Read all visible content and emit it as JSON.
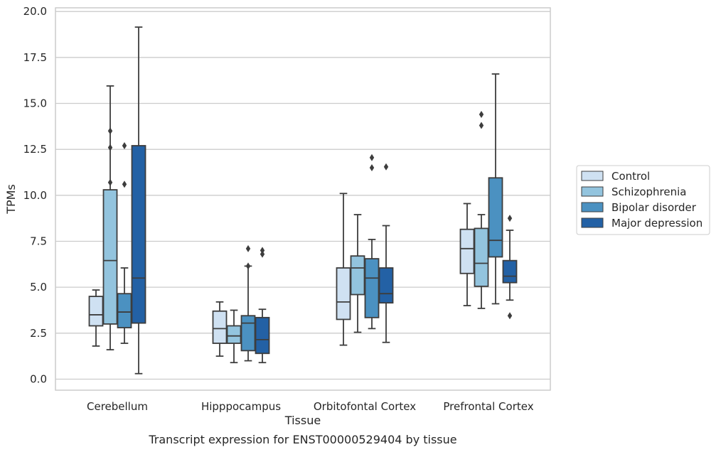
{
  "caption": "Transcript expression for ENST00000529404 by tissue",
  "chart_data": {
    "type": "box",
    "title": "",
    "xlabel": "Tissue",
    "ylabel": "TPMs",
    "ylim": [
      -0.6,
      20.2
    ],
    "yticks": [
      "0.0",
      "2.5",
      "5.0",
      "7.5",
      "10.0",
      "12.5",
      "15.0",
      "17.5",
      "20.0"
    ],
    "ytick_values": [
      0,
      2.5,
      5,
      7.5,
      10,
      12.5,
      15,
      17.5,
      20
    ],
    "grid": "horizontal",
    "legend_position": "right",
    "categories": [
      "Cerebellum",
      "Hipppocampus",
      "Orbitofontal Cortex",
      "Prefrontal Cortex"
    ],
    "series": [
      {
        "name": "Control",
        "color": "#cfe1f2",
        "boxes": [
          {
            "whisker_low": 1.8,
            "q1": 2.9,
            "median": 3.5,
            "q3": 4.5,
            "whisker_high": 4.85,
            "outliers": []
          },
          {
            "whisker_low": 1.25,
            "q1": 1.95,
            "median": 2.75,
            "q3": 3.7,
            "whisker_high": 4.2,
            "outliers": []
          },
          {
            "whisker_low": 1.85,
            "q1": 3.25,
            "median": 4.2,
            "q3": 6.05,
            "whisker_high": 10.1,
            "outliers": []
          },
          {
            "whisker_low": 4.0,
            "q1": 5.75,
            "median": 7.1,
            "q3": 8.15,
            "whisker_high": 9.55,
            "outliers": []
          }
        ]
      },
      {
        "name": "Schizophrenia",
        "color": "#93c4de",
        "boxes": [
          {
            "whisker_low": 1.6,
            "q1": 3.0,
            "median": 6.45,
            "q3": 10.3,
            "whisker_high": 15.95,
            "outliers": [
              13.5,
              12.6,
              10.7
            ]
          },
          {
            "whisker_low": 0.9,
            "q1": 1.95,
            "median": 2.35,
            "q3": 2.9,
            "whisker_high": 3.75,
            "outliers": []
          },
          {
            "whisker_low": 2.55,
            "q1": 4.6,
            "median": 6.05,
            "q3": 6.7,
            "whisker_high": 8.95,
            "outliers": []
          },
          {
            "whisker_low": 3.85,
            "q1": 5.05,
            "median": 6.3,
            "q3": 8.2,
            "whisker_high": 8.95,
            "outliers": [
              14.4,
              13.8
            ]
          }
        ]
      },
      {
        "name": "Bipolar disorder",
        "color": "#4b91c1",
        "boxes": [
          {
            "whisker_low": 1.95,
            "q1": 2.8,
            "median": 3.65,
            "q3": 4.65,
            "whisker_high": 6.05,
            "outliers": [
              12.7,
              10.6
            ]
          },
          {
            "whisker_low": 1.0,
            "q1": 1.55,
            "median": 3.05,
            "q3": 3.45,
            "whisker_high": 6.15,
            "outliers": [
              7.1,
              6.15
            ]
          },
          {
            "whisker_low": 2.75,
            "q1": 3.35,
            "median": 5.5,
            "q3": 6.55,
            "whisker_high": 7.6,
            "outliers": [
              12.05,
              11.5
            ]
          },
          {
            "whisker_low": 4.1,
            "q1": 6.65,
            "median": 7.55,
            "q3": 10.95,
            "whisker_high": 16.6,
            "outliers": []
          }
        ]
      },
      {
        "name": "Major depression",
        "color": "#2361a5",
        "boxes": [
          {
            "whisker_low": 0.3,
            "q1": 3.05,
            "median": 5.5,
            "q3": 12.7,
            "whisker_high": 19.15,
            "outliers": []
          },
          {
            "whisker_low": 0.9,
            "q1": 1.4,
            "median": 2.15,
            "q3": 3.35,
            "whisker_high": 3.8,
            "outliers": [
              7.0,
              6.8
            ]
          },
          {
            "whisker_low": 2.0,
            "q1": 4.15,
            "median": 4.65,
            "q3": 6.05,
            "whisker_high": 8.35,
            "outliers": [
              11.55
            ]
          },
          {
            "whisker_low": 4.3,
            "q1": 5.25,
            "median": 5.6,
            "q3": 6.45,
            "whisker_high": 8.1,
            "outliers": [
              8.75,
              3.45
            ]
          }
        ]
      }
    ]
  }
}
